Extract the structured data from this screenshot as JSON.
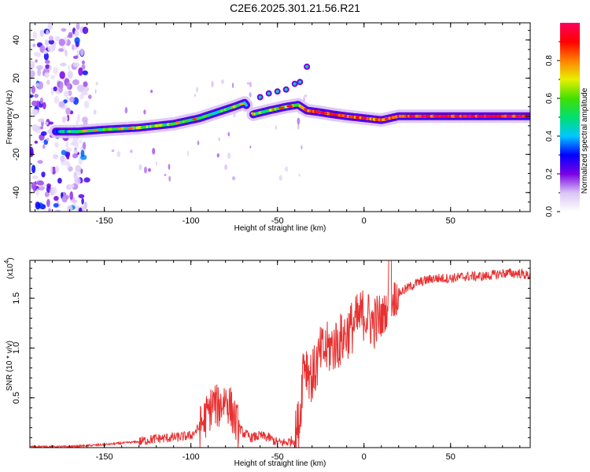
{
  "title": "C2E6.2025.301.21.56.R21",
  "chart_data": [
    {
      "type": "heatmap",
      "title": "C2E6.2025.301.21.56.R21",
      "xlabel": "Height of straight line (km)",
      "ylabel": "Frequency (Hz)",
      "xlim": [
        -193,
        96
      ],
      "ylim": [
        -50,
        49
      ],
      "xticks": [
        -150,
        -100,
        -50,
        0,
        50
      ],
      "yticks": [
        -40,
        -20,
        0,
        20,
        40
      ],
      "colorbar": {
        "label": "Normalized spectral amplitude",
        "range": [
          0.0,
          1.0
        ],
        "ticks": [
          0.0,
          0.2,
          0.4,
          0.6,
          0.8
        ],
        "tick_labels": [
          "0.0",
          "0.2",
          "0.4",
          "0.6",
          "0.8"
        ],
        "colors": [
          "#ffffff",
          "#d9c4f5",
          "#7a00e6",
          "#0000ff",
          "#00c8ff",
          "#00e070",
          "#40e000",
          "#e8f000",
          "#ff8000",
          "#ff0000",
          "#ff0060"
        ]
      },
      "ridge": {
        "description": "main spectral ridge (frequency in Hz vs height in km)",
        "x": [
          -180,
          -165,
          -150,
          -130,
          -110,
          -95,
          -85,
          -75,
          -69,
          -64,
          -55,
          -45,
          -38,
          -33,
          -25,
          -18,
          -10,
          0,
          10,
          20,
          40,
          60,
          96
        ],
        "y": [
          -8,
          -8,
          -7,
          -6,
          -4,
          -1,
          2,
          5,
          7,
          1,
          3,
          5,
          6,
          3,
          2,
          1,
          0,
          -1,
          -2,
          0,
          0,
          0,
          0
        ],
        "amplitude": [
          0.3,
          0.5,
          0.55,
          0.6,
          0.6,
          0.55,
          0.5,
          0.55,
          0.45,
          0.55,
          0.6,
          0.6,
          0.65,
          0.85,
          0.8,
          0.85,
          0.8,
          0.85,
          0.8,
          0.9,
          0.9,
          0.9,
          0.9
        ]
      },
      "upper_branch": {
        "x": [
          -60,
          -55,
          -50,
          -45,
          -40,
          -37,
          -33
        ],
        "y": [
          10,
          12,
          13,
          14,
          17,
          18,
          26
        ]
      },
      "scatter_region_x": [
        -193,
        -160
      ]
    },
    {
      "type": "line",
      "xlabel": "Height of straight line (km)",
      "ylabel": "SNR (10 * v/v)",
      "exponent_label": "(x10",
      "exponent_power": "4",
      "exponent_close": ")",
      "xlim": [
        -193,
        96
      ],
      "ylim": [
        0,
        1.88
      ],
      "xticks": [
        -150,
        -100,
        -50,
        0,
        50
      ],
      "yticks": [
        0.5,
        1.0,
        1.5
      ],
      "ytick_labels": [
        "0.5",
        "1.0",
        "1.5"
      ],
      "series": [
        {
          "name": "SNR",
          "color": "#e83030",
          "x": [
            -193,
            -170,
            -150,
            -130,
            -120,
            -110,
            -100,
            -95,
            -90,
            -87,
            -84,
            -80,
            -77,
            -74,
            -70,
            -65,
            -60,
            -55,
            -50,
            -45,
            -40,
            -37,
            -35,
            -30,
            -25,
            -20,
            -15,
            -10,
            -5,
            0,
            5,
            10,
            15,
            20,
            25,
            30,
            40,
            50,
            60,
            70,
            80,
            90,
            96
          ],
          "y": [
            0.01,
            0.01,
            0.03,
            0.06,
            0.09,
            0.1,
            0.12,
            0.2,
            0.35,
            0.45,
            0.4,
            0.5,
            0.4,
            0.25,
            0.15,
            0.1,
            0.12,
            0.1,
            0.05,
            0.05,
            0.08,
            0.3,
            0.9,
            0.7,
            0.95,
            1.0,
            1.05,
            1.15,
            1.25,
            1.35,
            1.25,
            1.3,
            1.45,
            1.55,
            1.6,
            1.65,
            1.7,
            1.7,
            1.72,
            1.72,
            1.75,
            1.75,
            1.72
          ]
        }
      ]
    }
  ]
}
